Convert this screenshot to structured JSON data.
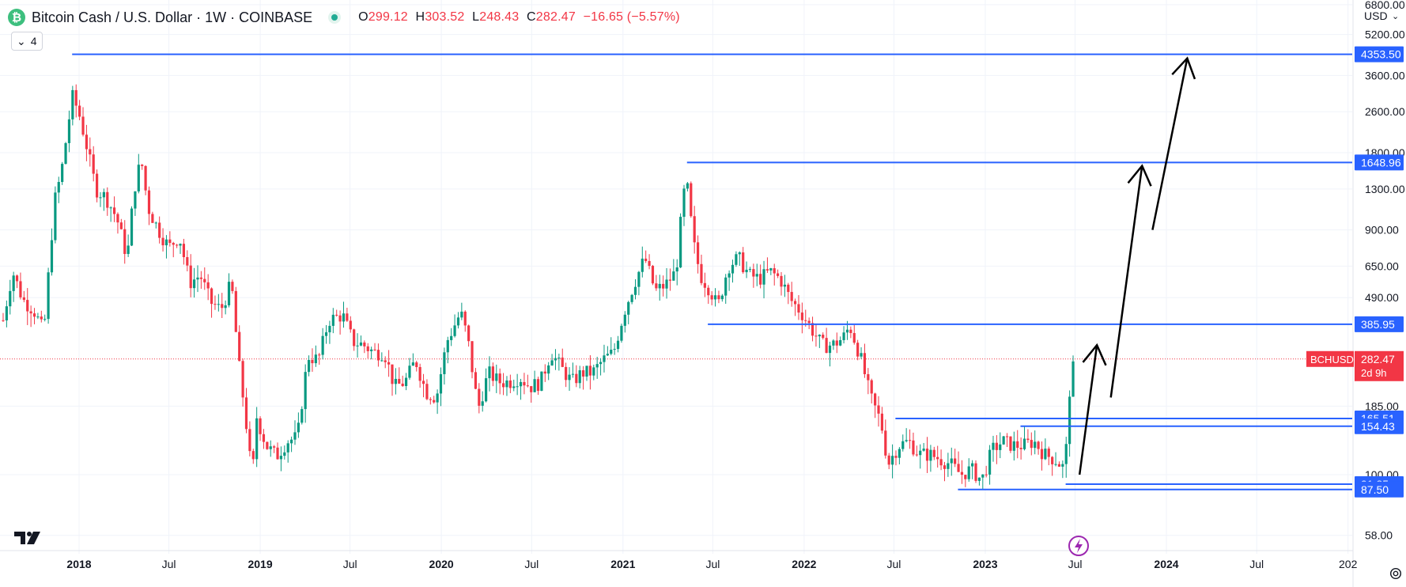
{
  "header": {
    "title": "Bitcoin Cash / U.S. Dollar · 1W · COINBASE",
    "coin_symbol": "₿",
    "ohlc": {
      "o_label": "O",
      "o": "299.12",
      "h_label": "H",
      "h": "303.52",
      "l_label": "L",
      "l": "248.43",
      "c_label": "C",
      "c": "282.47",
      "change": "−16.65 (−5.57%)"
    }
  },
  "indicator_toggle": {
    "count": "4"
  },
  "currency": "USD",
  "colors": {
    "up": "#089981",
    "down": "#f23645",
    "level": "#2962ff",
    "grid": "#f0f3fa",
    "arrow": "#000000",
    "price_line": "#f23645"
  },
  "chart_data": {
    "type": "candlestick",
    "symbol": "BCHUSD",
    "timeframe": "1W",
    "y_scale": "log",
    "y_ticks": [
      "6800.00",
      "5200.00",
      "3600.00",
      "2600.00",
      "1800.00",
      "1300.00",
      "900.00",
      "650.00",
      "490.00",
      "185.00",
      "100.00",
      "58.00"
    ],
    "x_ticks": [
      "2018",
      "Jul",
      "2019",
      "Jul",
      "2020",
      "Jul",
      "2021",
      "Jul",
      "2022",
      "Jul",
      "2023",
      "Jul",
      "2024",
      "Jul",
      "202"
    ],
    "current_price": {
      "label": "BCHUSD",
      "value": "282.47",
      "countdown": "2d 9h"
    },
    "levels": [
      {
        "value": "4353.50",
        "start": "2017-12-18"
      },
      {
        "value": "1648.96",
        "start": "2021-05-10"
      },
      {
        "value": "385.95",
        "start": "2021-06-21"
      },
      {
        "value": "165.51",
        "start": "2022-07-04"
      },
      {
        "value": "154.43",
        "start": "2023-03-13"
      },
      {
        "value": "91.85",
        "start": "2023-06-12"
      },
      {
        "value": "87.50",
        "start": "2022-11-07"
      }
    ],
    "arrows": [
      {
        "from": {
          "date": "2023-07-10",
          "price": 100
        },
        "to": {
          "date": "2023-08-14",
          "price": 320
        }
      },
      {
        "from": {
          "date": "2023-09-11",
          "price": 200
        },
        "to": {
          "date": "2023-11-13",
          "price": 1600
        }
      },
      {
        "from": {
          "date": "2023-12-04",
          "price": 900
        },
        "to": {
          "date": "2024-02-12",
          "price": 4200
        }
      }
    ],
    "candles_weekly_close_path": [
      [
        "2017-08-01",
        400
      ],
      [
        "2017-08-20",
        620
      ],
      [
        "2017-09-10",
        480
      ],
      [
        "2017-10-01",
        440
      ],
      [
        "2017-10-22",
        360
      ],
      [
        "2017-11-12",
        1150
      ],
      [
        "2017-11-26",
        1500
      ],
      [
        "2017-12-10",
        2300
      ],
      [
        "2017-12-18",
        3000
      ],
      [
        "2017-12-31",
        2600
      ],
      [
        "2018-01-14",
        2000
      ],
      [
        "2018-02-04",
        1300
      ],
      [
        "2018-02-25",
        1200
      ],
      [
        "2018-03-18",
        1000
      ],
      [
        "2018-04-08",
        700
      ],
      [
        "2018-04-22",
        1300
      ],
      [
        "2018-05-06",
        1700
      ],
      [
        "2018-05-20",
        1100
      ],
      [
        "2018-06-10",
        900
      ],
      [
        "2018-07-01",
        770
      ],
      [
        "2018-07-22",
        850
      ],
      [
        "2018-08-12",
        560
      ],
      [
        "2018-09-02",
        600
      ],
      [
        "2018-09-23",
        470
      ],
      [
        "2018-10-14",
        440
      ],
      [
        "2018-11-04",
        560
      ],
      [
        "2018-11-18",
        280
      ],
      [
        "2018-12-02",
        170
      ],
      [
        "2018-12-16",
        95
      ],
      [
        "2018-12-24",
        170
      ],
      [
        "2019-01-13",
        130
      ],
      [
        "2019-02-03",
        118
      ],
      [
        "2019-02-24",
        135
      ],
      [
        "2019-03-17",
        140
      ],
      [
        "2019-04-07",
        290
      ],
      [
        "2019-04-28",
        280
      ],
      [
        "2019-05-19",
        400
      ],
      [
        "2019-06-16",
        420
      ],
      [
        "2019-07-07",
        330
      ],
      [
        "2019-07-28",
        320
      ],
      [
        "2019-08-18",
        300
      ],
      [
        "2019-09-08",
        300
      ],
      [
        "2019-09-29",
        220
      ],
      [
        "2019-10-20",
        230
      ],
      [
        "2019-11-10",
        280
      ],
      [
        "2019-12-01",
        210
      ],
      [
        "2019-12-22",
        200
      ],
      [
        "2020-01-12",
        330
      ],
      [
        "2020-02-09",
        430
      ],
      [
        "2020-02-23",
        340
      ],
      [
        "2020-03-15",
        180
      ],
      [
        "2020-04-05",
        250
      ],
      [
        "2020-04-26",
        230
      ],
      [
        "2020-05-17",
        230
      ],
      [
        "2020-06-07",
        240
      ],
      [
        "2020-06-28",
        220
      ],
      [
        "2020-07-19",
        230
      ],
      [
        "2020-08-09",
        300
      ],
      [
        "2020-08-30",
        260
      ],
      [
        "2020-09-20",
        230
      ],
      [
        "2020-10-11",
        250
      ],
      [
        "2020-11-01",
        250
      ],
      [
        "2020-11-22",
        280
      ],
      [
        "2020-12-13",
        300
      ],
      [
        "2021-01-03",
        430
      ],
      [
        "2021-01-24",
        560
      ],
      [
        "2021-02-14",
        700
      ],
      [
        "2021-03-07",
        520
      ],
      [
        "2021-03-28",
        550
      ],
      [
        "2021-04-18",
        620
      ],
      [
        "2021-05-02",
        1200
      ],
      [
        "2021-05-09",
        1400
      ],
      [
        "2021-05-23",
        800
      ],
      [
        "2021-06-06",
        600
      ],
      [
        "2021-06-27",
        520
      ],
      [
        "2021-07-11",
        450
      ],
      [
        "2021-08-01",
        650
      ],
      [
        "2021-08-22",
        700
      ],
      [
        "2021-09-12",
        600
      ],
      [
        "2021-10-03",
        580
      ],
      [
        "2021-10-24",
        620
      ],
      [
        "2021-11-14",
        580
      ],
      [
        "2021-12-05",
        480
      ],
      [
        "2021-12-26",
        430
      ],
      [
        "2022-01-16",
        370
      ],
      [
        "2022-02-06",
        320
      ],
      [
        "2022-02-27",
        320
      ],
      [
        "2022-03-20",
        340
      ],
      [
        "2022-04-03",
        380
      ],
      [
        "2022-04-24",
        290
      ],
      [
        "2022-05-15",
        200
      ],
      [
        "2022-06-05",
        160
      ],
      [
        "2022-06-19",
        110
      ],
      [
        "2022-07-10",
        130
      ],
      [
        "2022-07-31",
        135
      ],
      [
        "2022-08-21",
        120
      ],
      [
        "2022-09-11",
        120
      ],
      [
        "2022-10-02",
        115
      ],
      [
        "2022-10-23",
        110
      ],
      [
        "2022-11-13",
        100
      ],
      [
        "2022-12-04",
        105
      ],
      [
        "2022-12-25",
        95
      ],
      [
        "2023-01-15",
        125
      ],
      [
        "2023-02-05",
        135
      ],
      [
        "2023-02-26",
        130
      ],
      [
        "2023-03-19",
        130
      ],
      [
        "2023-04-09",
        135
      ],
      [
        "2023-04-30",
        120
      ],
      [
        "2023-05-21",
        115
      ],
      [
        "2023-06-11",
        105
      ],
      [
        "2023-06-18",
        200
      ],
      [
        "2023-06-25",
        250
      ],
      [
        "2023-07-02",
        282.47
      ]
    ]
  }
}
